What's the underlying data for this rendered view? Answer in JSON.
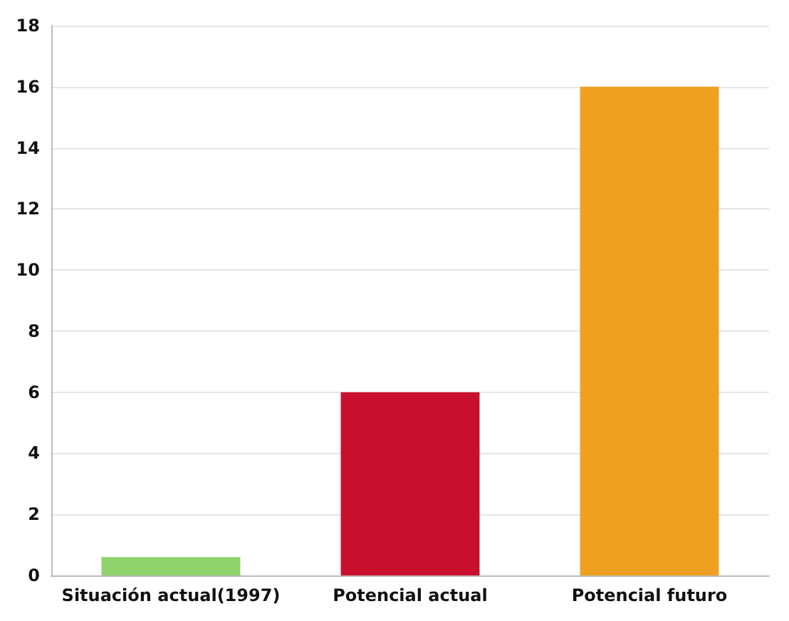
{
  "chart_data": {
    "type": "bar",
    "categories": [
      "Situación actual(1997)",
      "Potencial actual",
      "Potencial futuro"
    ],
    "values": [
      0.6,
      6,
      16
    ],
    "colors": [
      "#8fd16a",
      "#c8102e",
      "#f0a020"
    ],
    "ylim": [
      0,
      18
    ],
    "yticks": [
      0,
      2,
      4,
      6,
      8,
      10,
      12,
      14,
      16,
      18
    ],
    "grid": "y"
  }
}
